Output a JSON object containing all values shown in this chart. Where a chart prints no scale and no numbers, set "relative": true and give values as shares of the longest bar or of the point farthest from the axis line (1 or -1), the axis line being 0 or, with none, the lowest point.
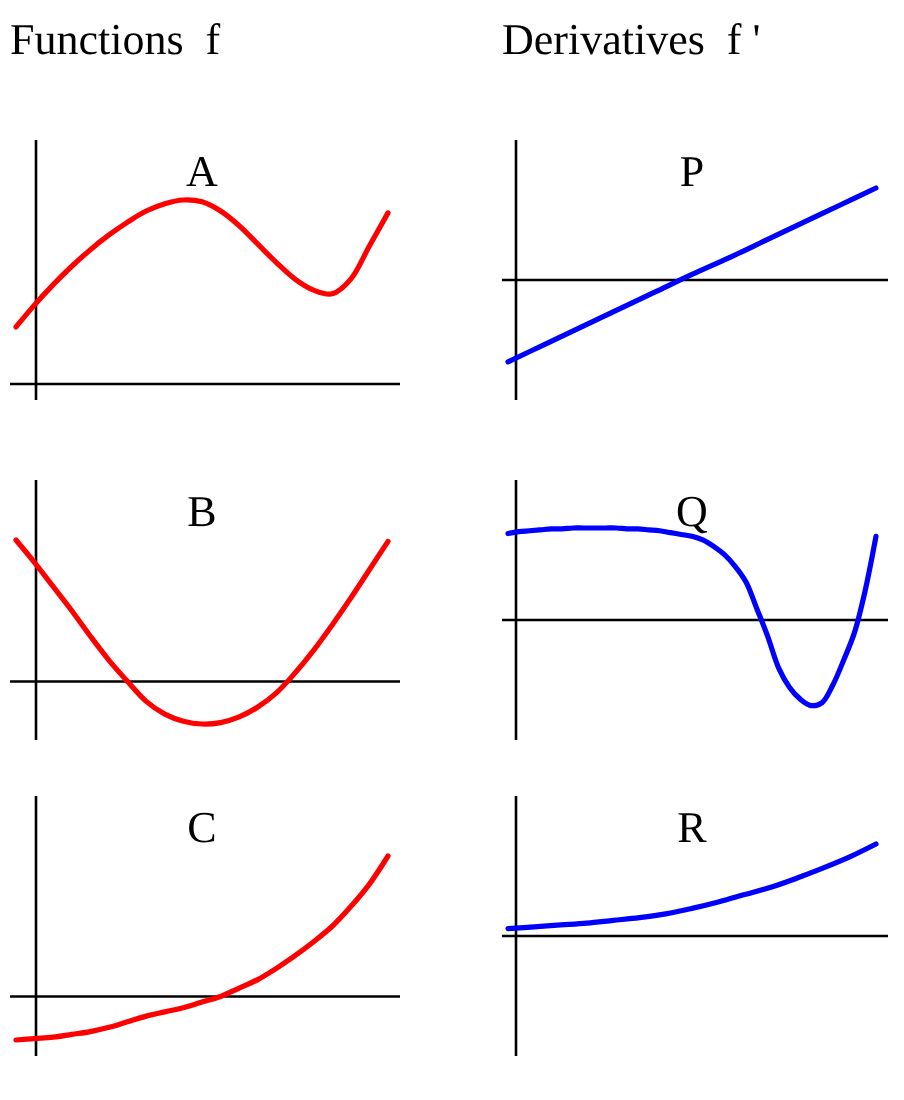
{
  "chart_data": [
    {
      "type": "line",
      "title": "A",
      "annotations": [
        "Functions  f"
      ],
      "relative": true,
      "categories": [
        null,
        null,
        null,
        null,
        null,
        null,
        null,
        null,
        null,
        null,
        null,
        null,
        null,
        null,
        null,
        null,
        null,
        null,
        null,
        null,
        null
      ],
      "series": [
        {
          "color": "#ff0000",
          "values": [
            0.31,
            0.43,
            0.54,
            0.64,
            0.73,
            0.81,
            0.88,
            0.94,
            0.98,
            1,
            0.99,
            0.94,
            0.86,
            0.76,
            0.66,
            0.57,
            0.51,
            0.49,
            0.57,
            0.75,
            0.93
          ]
        }
      ]
    },
    {
      "type": "line",
      "title": "P",
      "annotations": [
        "Derivatives  f '"
      ],
      "relative": true,
      "categories": [
        null,
        null,
        null,
        null,
        null,
        null,
        null,
        null,
        null,
        null,
        null
      ],
      "series": [
        {
          "color": "#0000ff",
          "values": [
            -0.89,
            -0.7,
            -0.51,
            -0.32,
            -0.13,
            0.06,
            0.24,
            0.43,
            0.62,
            0.81,
            1
          ]
        }
      ]
    },
    {
      "type": "line",
      "title": "B",
      "relative": true,
      "categories": [
        null,
        null,
        null,
        null,
        null,
        null,
        null,
        null,
        null,
        null,
        null,
        null,
        null,
        null,
        null,
        null,
        null,
        null,
        null,
        null,
        null
      ],
      "series": [
        {
          "color": "#ff0000",
          "values": [
            1,
            0.84,
            0.67,
            0.5,
            0.32,
            0.15,
            0,
            -0.14,
            -0.23,
            -0.28,
            -0.3,
            -0.29,
            -0.25,
            -0.18,
            -0.08,
            0.06,
            0.22,
            0.4,
            0.59,
            0.79,
            0.99
          ]
        }
      ]
    },
    {
      "type": "line",
      "title": "Q",
      "relative": true,
      "categories": [
        null,
        null,
        null,
        null,
        null,
        null,
        null,
        null,
        null,
        null,
        null,
        null,
        null,
        null,
        null,
        null,
        null,
        null,
        null,
        null,
        null,
        null,
        null,
        null,
        null,
        null,
        null,
        null,
        null,
        null,
        null,
        null,
        null,
        null,
        null
      ],
      "series": [
        {
          "color": "#0000ff",
          "values": [
            0.94,
            0.96,
            0.97,
            0.98,
            0.99,
            0.99,
            1,
            1,
            1,
            1,
            1,
            0.99,
            0.99,
            0.98,
            0.97,
            0.95,
            0.93,
            0.91,
            0.87,
            0.8,
            0.71,
            0.58,
            0.41,
            0.12,
            -0.18,
            -0.52,
            -0.73,
            -0.86,
            -0.93,
            -0.9,
            -0.71,
            -0.44,
            -0.14,
            0.32,
            0.91
          ]
        }
      ]
    },
    {
      "type": "line",
      "title": "C",
      "relative": true,
      "categories": [
        null,
        null,
        null,
        null,
        null,
        null,
        null,
        null,
        null,
        null,
        null,
        null,
        null,
        null,
        null,
        null,
        null,
        null,
        null,
        null,
        null
      ],
      "series": [
        {
          "color": "#ff0000",
          "values": [
            -0.31,
            -0.3,
            -0.29,
            -0.27,
            -0.25,
            -0.22,
            -0.18,
            -0.14,
            -0.11,
            -0.08,
            -0.04,
            0,
            0.06,
            0.12,
            0.2,
            0.29,
            0.39,
            0.5,
            0.64,
            0.8,
            1
          ]
        }
      ]
    },
    {
      "type": "line",
      "title": "R",
      "relative": true,
      "categories": [
        null,
        null,
        null,
        null,
        null,
        null,
        null,
        null,
        null,
        null,
        null,
        null,
        null,
        null,
        null
      ],
      "series": [
        {
          "color": "#0000ff",
          "values": [
            0.08,
            0.1,
            0.12,
            0.14,
            0.17,
            0.2,
            0.24,
            0.3,
            0.37,
            0.45,
            0.53,
            0.63,
            0.74,
            0.86,
            1
          ]
        }
      ]
    }
  ]
}
